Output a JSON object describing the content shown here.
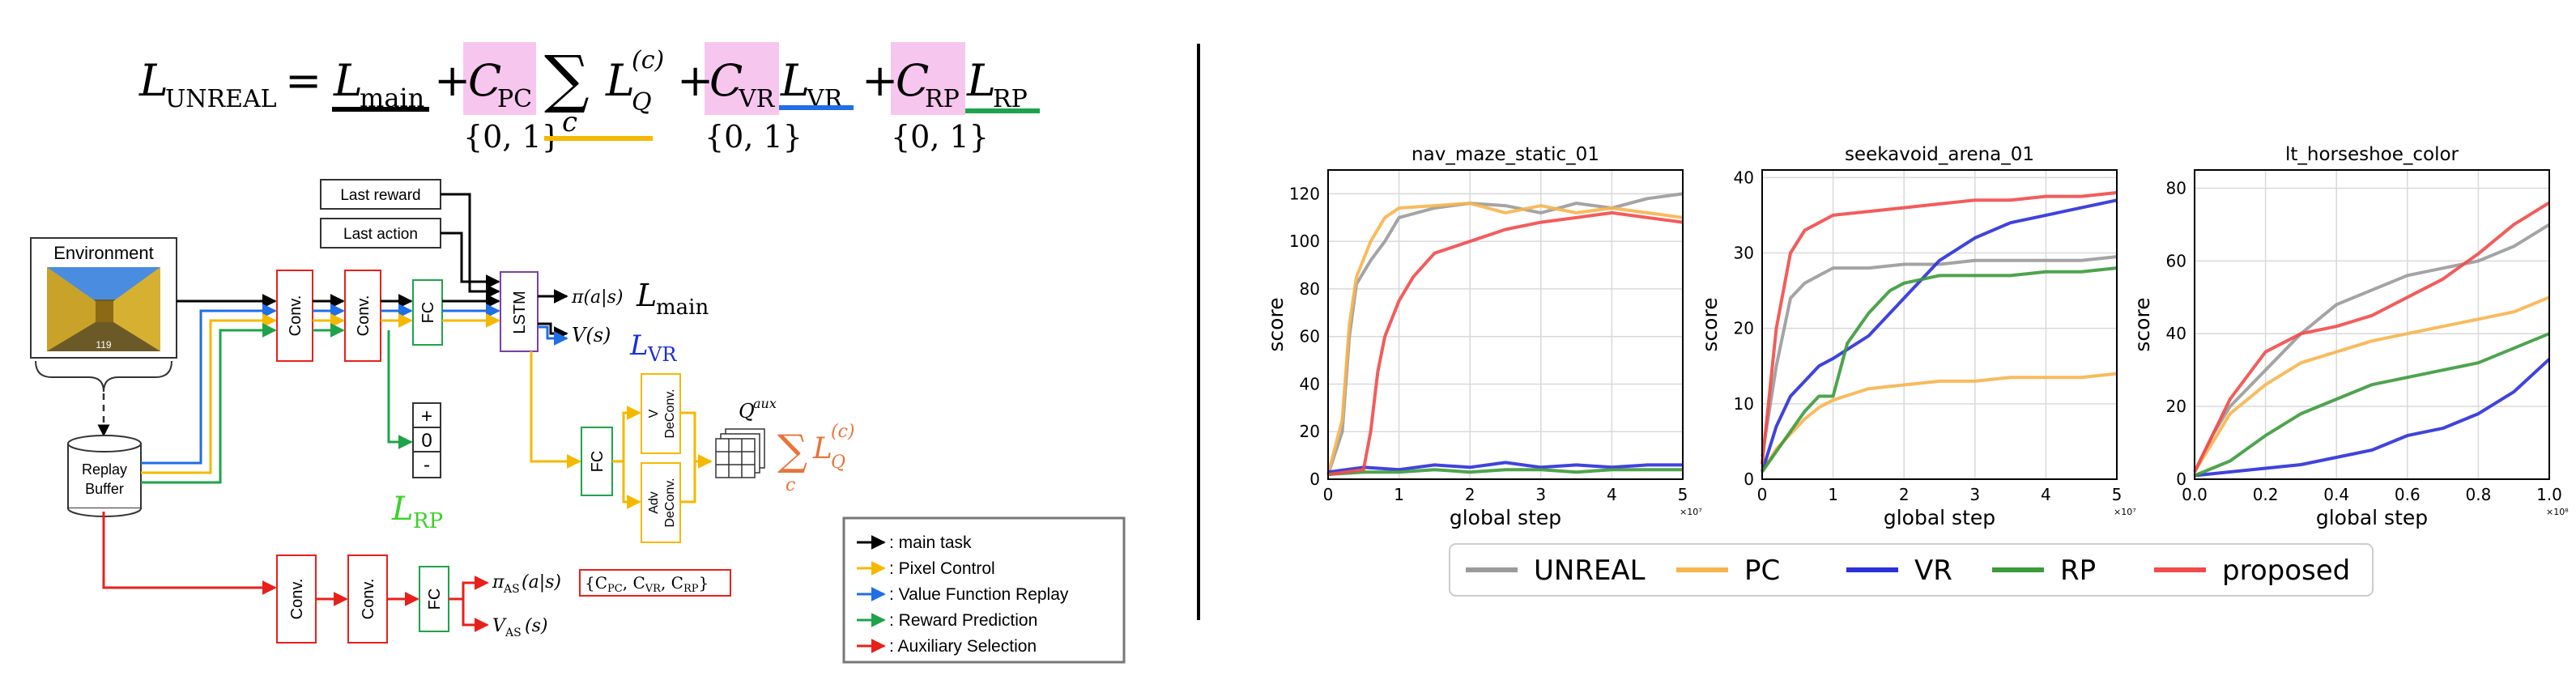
{
  "equation": {
    "lhs": "L",
    "lhs_sub": "UNREAL",
    "eq": "=",
    "term1": "L",
    "term1_sub": "main",
    "plus": "+",
    "c_pc": "C",
    "c_pc_sub": "PC",
    "sum": "∑",
    "sum_index": "c",
    "lq": "L",
    "lq_sub": "Q",
    "lq_sup": "(c)",
    "c_vr": "C",
    "c_vr_sub": "VR",
    "l_vr": "L",
    "l_vr_sub": "VR",
    "c_rp": "C",
    "c_rp_sub": "RP",
    "l_rp": "L",
    "l_rp_sub": "RP",
    "set_label": "{0, 1}"
  },
  "diagram": {
    "environment": "Environment",
    "replay_buffer_line1": "Replay",
    "replay_buffer_line2": "Buffer",
    "last_reward": "Last reward",
    "last_action": "Last action",
    "conv": "Conv.",
    "fc": "FC",
    "lstm": "LSTM",
    "pi_out": "π(a|s)",
    "l_main": "L",
    "l_main_sub": "main",
    "v_out": "V(s)",
    "l_vr": "L",
    "l_vr_sub": "VR",
    "rp_plus": "+",
    "rp_zero": "0",
    "rp_minus": "-",
    "l_rp": "L",
    "l_rp_sub": "RP",
    "v_deconv_1": "V",
    "v_deconv_2": "DeConv.",
    "adv_deconv_1": "Adv",
    "adv_deconv_2": "DeConv.",
    "q_aux": "Q",
    "q_aux_sup": "aux",
    "sum_lq": "∑",
    "sum_lq_index": "c",
    "lq": "L",
    "lq_sub": "Q",
    "lq_sup": "(c)",
    "pi_as": "π",
    "pi_as_sub": "AS",
    "pi_as_arg": "(a|s)",
    "v_as": "V",
    "v_as_sub": "AS",
    "v_as_arg": "(s)",
    "coeff_set": "{C",
    "coeff_pc_sub": "PC",
    "coeff_vr": ", C",
    "coeff_vr_sub": "VR",
    "coeff_rp": ", C",
    "coeff_rp_sub": "RP",
    "coeff_close": "}",
    "env_counter": "119"
  },
  "legend_box": {
    "items": [
      {
        "label": ": main task",
        "color": "#000000"
      },
      {
        "label": ": Pixel Control",
        "color": "#f5b800"
      },
      {
        "label": ": Value Function Replay",
        "color": "#1f6fe5"
      },
      {
        "label": ": Reward Prediction",
        "color": "#1fa34a"
      },
      {
        "label": ": Auxiliary Selection",
        "color": "#e8201a"
      }
    ]
  },
  "colors": {
    "main": "#000000",
    "pixel_control": "#f5b800",
    "value_replay": "#1f6fe5",
    "reward_prediction": "#1fa34a",
    "aux_selection": "#e8201a",
    "pink_highlight": "#f7c6ef",
    "vr_text": "#1a2fd6",
    "rp_text": "#3bd12a",
    "lq_text": "#e8743a"
  },
  "chart_data": [
    {
      "type": "line",
      "title": "nav_maze_static_01",
      "xlabel": "global step",
      "ylabel": "score",
      "x_multiplier": "×10⁷",
      "xlim": [
        0,
        5
      ],
      "ylim": [
        0,
        130
      ],
      "xticks": [
        "0",
        "1",
        "2",
        "3",
        "4",
        "5"
      ],
      "yticks": [
        "0",
        "20",
        "40",
        "60",
        "80",
        "100",
        "120"
      ],
      "grid": true,
      "series": [
        {
          "name": "UNREAL",
          "x": [
            0,
            0.2,
            0.3,
            0.4,
            0.6,
            0.8,
            1.0,
            1.5,
            2.0,
            2.5,
            3.0,
            3.5,
            4.0,
            4.5,
            5.0
          ],
          "y": [
            2,
            20,
            60,
            82,
            92,
            100,
            110,
            114,
            116,
            115,
            112,
            116,
            114,
            118,
            120
          ]
        },
        {
          "name": "PC",
          "x": [
            0,
            0.2,
            0.3,
            0.4,
            0.6,
            0.8,
            1.0,
            1.5,
            2.0,
            2.5,
            3.0,
            3.5,
            4.0,
            4.5,
            5.0
          ],
          "y": [
            2,
            25,
            65,
            85,
            100,
            110,
            114,
            115,
            116,
            112,
            115,
            112,
            114,
            112,
            110
          ]
        },
        {
          "name": "VR",
          "x": [
            0,
            0.5,
            1.0,
            1.5,
            2.0,
            2.5,
            3.0,
            3.5,
            4.0,
            4.5,
            5.0
          ],
          "y": [
            3,
            5,
            4,
            6,
            5,
            7,
            5,
            6,
            5,
            6,
            6
          ]
        },
        {
          "name": "RP",
          "x": [
            0,
            0.5,
            1.0,
            1.5,
            2.0,
            2.5,
            3.0,
            3.5,
            4.0,
            4.5,
            5.0
          ],
          "y": [
            2,
            3,
            3,
            4,
            3,
            4,
            4,
            3,
            4,
            4,
            4
          ]
        },
        {
          "name": "proposed",
          "x": [
            0,
            0.5,
            0.6,
            0.7,
            0.8,
            1.0,
            1.2,
            1.5,
            2.0,
            2.5,
            3.0,
            3.5,
            4.0,
            4.5,
            5.0
          ],
          "y": [
            2,
            4,
            20,
            45,
            60,
            75,
            85,
            95,
            100,
            105,
            108,
            110,
            112,
            110,
            108
          ]
        }
      ]
    },
    {
      "type": "line",
      "title": "seekavoid_arena_01",
      "xlabel": "global step",
      "ylabel": "score",
      "x_multiplier": "×10⁷",
      "xlim": [
        0,
        5
      ],
      "ylim": [
        0,
        41
      ],
      "xticks": [
        "0",
        "1",
        "2",
        "3",
        "4",
        "5"
      ],
      "yticks": [
        "0",
        "10",
        "20",
        "30",
        "40"
      ],
      "grid": true,
      "series": [
        {
          "name": "UNREAL",
          "x": [
            0,
            0.2,
            0.4,
            0.6,
            0.8,
            1.0,
            1.5,
            2.0,
            2.5,
            3.0,
            3.5,
            4.0,
            4.5,
            5.0
          ],
          "y": [
            3,
            15,
            24,
            26,
            27,
            28,
            28,
            28.5,
            28.5,
            29,
            29,
            29,
            29,
            29.5
          ]
        },
        {
          "name": "PC",
          "x": [
            0,
            0.2,
            0.4,
            0.6,
            0.8,
            1.0,
            1.5,
            2.0,
            2.5,
            3.0,
            3.5,
            4.0,
            4.5,
            5.0
          ],
          "y": [
            1,
            4,
            6,
            8,
            9.5,
            10.5,
            12,
            12.5,
            13,
            13,
            13.5,
            13.5,
            13.5,
            14
          ]
        },
        {
          "name": "VR",
          "x": [
            0,
            0.2,
            0.4,
            0.6,
            0.8,
            1.0,
            1.5,
            2.0,
            2.5,
            3.0,
            3.5,
            4.0,
            4.5,
            5.0
          ],
          "y": [
            1,
            7,
            11,
            13,
            15,
            16,
            19,
            24,
            29,
            32,
            34,
            35,
            36,
            37
          ]
        },
        {
          "name": "RP",
          "x": [
            0,
            0.3,
            0.6,
            0.8,
            1.0,
            1.2,
            1.5,
            1.8,
            2.0,
            2.5,
            3.0,
            3.5,
            4.0,
            4.5,
            5.0
          ],
          "y": [
            1,
            5,
            9,
            11,
            11,
            18,
            22,
            25,
            26,
            27,
            27,
            27,
            27.5,
            27.5,
            28
          ]
        },
        {
          "name": "proposed",
          "x": [
            0,
            0.2,
            0.4,
            0.6,
            0.8,
            1.0,
            1.5,
            2.0,
            2.5,
            3.0,
            3.5,
            4.0,
            4.5,
            5.0
          ],
          "y": [
            2,
            20,
            30,
            33,
            34,
            35,
            35.5,
            36,
            36.5,
            37,
            37,
            37.5,
            37.5,
            38
          ]
        }
      ]
    },
    {
      "type": "line",
      "title": "lt_horseshoe_color",
      "xlabel": "global step",
      "ylabel": "score",
      "x_multiplier": "×10⁸",
      "xlim": [
        0,
        1
      ],
      "ylim": [
        0,
        85
      ],
      "xticks": [
        "0.0",
        "0.2",
        "0.4",
        "0.6",
        "0.8",
        "1.0"
      ],
      "yticks": [
        "0",
        "20",
        "40",
        "60",
        "80"
      ],
      "grid": true,
      "series": [
        {
          "name": "UNREAL",
          "x": [
            0,
            0.05,
            0.1,
            0.2,
            0.3,
            0.4,
            0.5,
            0.6,
            0.7,
            0.8,
            0.9,
            1.0
          ],
          "y": [
            2,
            12,
            20,
            30,
            40,
            48,
            52,
            56,
            58,
            60,
            64,
            70
          ]
        },
        {
          "name": "PC",
          "x": [
            0,
            0.05,
            0.1,
            0.2,
            0.3,
            0.4,
            0.5,
            0.6,
            0.7,
            0.8,
            0.9,
            1.0
          ],
          "y": [
            2,
            10,
            18,
            26,
            32,
            35,
            38,
            40,
            42,
            44,
            46,
            50
          ]
        },
        {
          "name": "VR",
          "x": [
            0,
            0.1,
            0.2,
            0.3,
            0.4,
            0.5,
            0.6,
            0.7,
            0.8,
            0.9,
            1.0
          ],
          "y": [
            1,
            2,
            3,
            4,
            6,
            8,
            12,
            14,
            18,
            24,
            33
          ]
        },
        {
          "name": "RP",
          "x": [
            0,
            0.1,
            0.2,
            0.3,
            0.4,
            0.5,
            0.6,
            0.7,
            0.8,
            0.9,
            1.0
          ],
          "y": [
            1,
            5,
            12,
            18,
            22,
            26,
            28,
            30,
            32,
            36,
            40
          ]
        },
        {
          "name": "proposed",
          "x": [
            0,
            0.05,
            0.1,
            0.2,
            0.3,
            0.4,
            0.5,
            0.6,
            0.7,
            0.8,
            0.9,
            1.0
          ],
          "y": [
            2,
            12,
            22,
            35,
            40,
            42,
            45,
            50,
            55,
            62,
            70,
            76
          ]
        }
      ]
    }
  ],
  "plot_legend": {
    "items": [
      {
        "name": "UNREAL",
        "color": "#9a9a9a"
      },
      {
        "name": "PC",
        "color": "#f7b44c"
      },
      {
        "name": "VR",
        "color": "#2b2fd9"
      },
      {
        "name": "RP",
        "color": "#3b9a3b"
      },
      {
        "name": "proposed",
        "color": "#f24a4a"
      }
    ]
  }
}
